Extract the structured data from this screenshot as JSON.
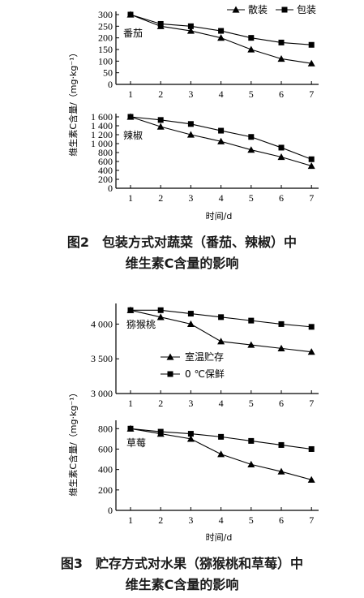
{
  "chart_data": [
    {
      "type": "line",
      "ylabel": "维生素C含量/（mg·kg⁻¹）",
      "xlabel": "时间/d",
      "legend": {
        "placement": "top-right",
        "entries": [
          "散装",
          "包装"
        ]
      },
      "caption": {
        "line1": "图2　包装方式对蔬菜（番茄、辣椒）中",
        "line2": "维生素C含量的影响"
      },
      "panels": [
        {
          "label": "番茄",
          "x": [
            1,
            2,
            3,
            4,
            5,
            6,
            7
          ],
          "ylim": [
            0,
            300
          ],
          "yticks": [
            "0",
            "50",
            "100",
            "150",
            "200",
            "250",
            "300"
          ],
          "series": [
            {
              "name": "散装",
              "marker": "triangle",
              "values": [
                300,
                250,
                230,
                200,
                150,
                110,
                90
              ]
            },
            {
              "name": "包装",
              "marker": "square",
              "values": [
                300,
                260,
                250,
                230,
                200,
                180,
                170
              ]
            }
          ]
        },
        {
          "label": "辣椒",
          "x": [
            1,
            2,
            3,
            4,
            5,
            6,
            7
          ],
          "ylim": [
            0,
            1600
          ],
          "yticks": [
            "0",
            "200",
            "400",
            "600",
            "800",
            "1 000",
            "1 200",
            "1 400",
            "1 600"
          ],
          "series": [
            {
              "name": "散装",
              "marker": "triangle",
              "values": [
                1600,
                1380,
                1200,
                1050,
                860,
                700,
                500
              ]
            },
            {
              "name": "包装",
              "marker": "square",
              "values": [
                1600,
                1530,
                1440,
                1290,
                1150,
                910,
                650
              ]
            }
          ]
        }
      ]
    },
    {
      "type": "line",
      "ylabel": "维生素C含量/（mg·kg⁻¹）",
      "xlabel": "时间/d",
      "legend": {
        "placement": "inside-left",
        "entries": [
          "室温贮存",
          "0 ℃保鲜"
        ]
      },
      "caption": {
        "line1": "图3　贮存方式对水果（猕猴桃和草莓）中",
        "line2": "维生素C含量的影响"
      },
      "panels": [
        {
          "label": "猕猴桃",
          "x": [
            1,
            2,
            3,
            4,
            5,
            6,
            7
          ],
          "ylim": [
            3000,
            4250
          ],
          "yticks": [
            "3 000",
            "3 500",
            "4 000"
          ],
          "series": [
            {
              "name": "室温贮存",
              "marker": "triangle",
              "values": [
                4200,
                4100,
                4000,
                3750,
                3700,
                3650,
                3600
              ]
            },
            {
              "name": "0 ℃保鲜",
              "marker": "square",
              "values": [
                4200,
                4200,
                4150,
                4100,
                4050,
                4000,
                3960
              ]
            }
          ]
        },
        {
          "label": "草莓",
          "x": [
            1,
            2,
            3,
            4,
            5,
            6,
            7
          ],
          "ylim": [
            0,
            850
          ],
          "yticks": [
            "0",
            "200",
            "400",
            "600",
            "800"
          ],
          "series": [
            {
              "name": "室温贮存",
              "marker": "triangle",
              "values": [
                800,
                750,
                700,
                550,
                450,
                380,
                300
              ]
            },
            {
              "name": "0 ℃保鲜",
              "marker": "square",
              "values": [
                800,
                770,
                750,
                720,
                680,
                640,
                600
              ]
            }
          ]
        }
      ]
    }
  ]
}
